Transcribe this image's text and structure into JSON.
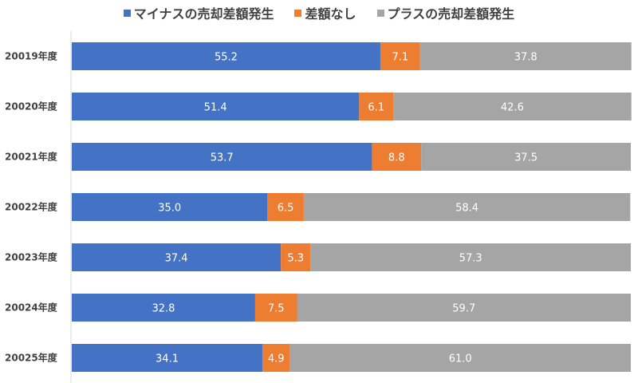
{
  "chart_data": {
    "type": "bar",
    "orientation": "horizontal",
    "stacked": "percent",
    "title": "",
    "xlabel": "",
    "ylabel": "",
    "xlim": [
      0,
      100
    ],
    "grid": false,
    "legend_position": "top",
    "categories": [
      "20019年度",
      "20020年度",
      "20021年度",
      "20022年度",
      "20023年度",
      "20024年度",
      "20025年度"
    ],
    "series": [
      {
        "name": "マイナスの売却差額発生",
        "color": "#4472C4",
        "values": [
          55.2,
          51.4,
          53.7,
          35.0,
          37.4,
          32.8,
          34.1
        ]
      },
      {
        "name": "差額なし",
        "color": "#ED7D31",
        "values": [
          7.1,
          6.1,
          8.8,
          6.5,
          5.3,
          7.5,
          4.9
        ]
      },
      {
        "name": "プラスの売却差額発生",
        "color": "#A5A5A5",
        "values": [
          37.8,
          42.6,
          37.5,
          58.4,
          57.3,
          59.7,
          61.0
        ]
      }
    ]
  }
}
